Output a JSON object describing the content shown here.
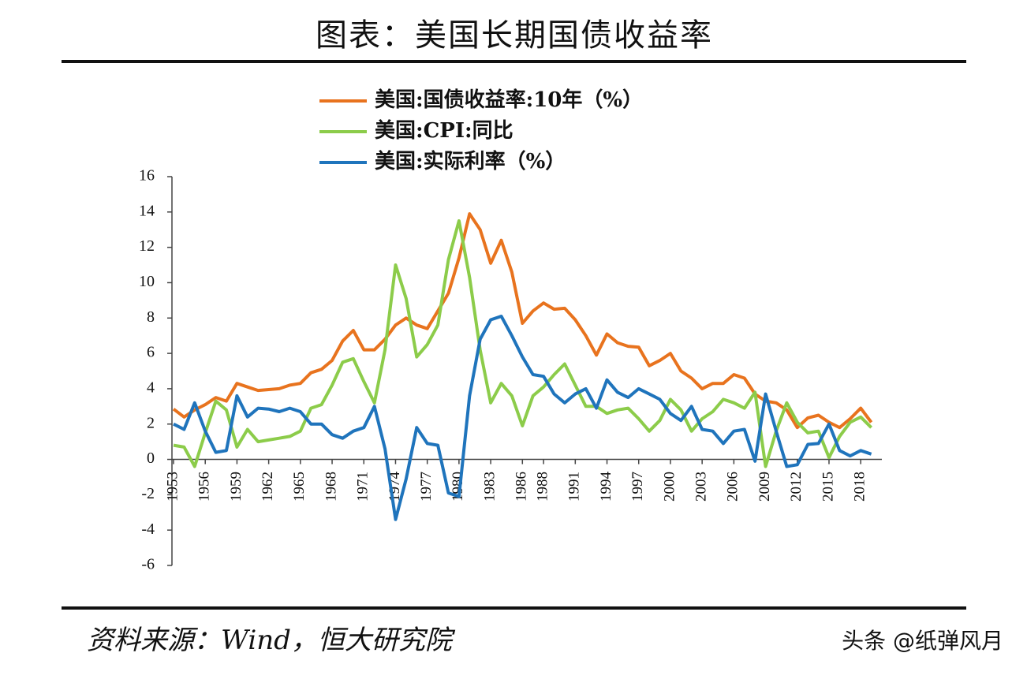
{
  "chart_data": {
    "type": "line",
    "title": "图表：美国长期国债收益率",
    "source": "资料来源：Wind，恒大研究院",
    "watermark": "头条 @纸弹风月",
    "x": [
      1953,
      1954,
      1955,
      1956,
      1957,
      1958,
      1959,
      1960,
      1961,
      1962,
      1963,
      1964,
      1965,
      1966,
      1967,
      1968,
      1969,
      1970,
      1971,
      1972,
      1973,
      1974,
      1975,
      1976,
      1977,
      1978,
      1979,
      1980,
      1981,
      1982,
      1983,
      1984,
      1985,
      1986,
      1987,
      1988,
      1989,
      1990,
      1991,
      1992,
      1993,
      1994,
      1995,
      1996,
      1997,
      1998,
      1999,
      2000,
      2001,
      2002,
      2003,
      2004,
      2005,
      2006,
      2007,
      2008,
      2009,
      2010,
      2011,
      2012,
      2013,
      2014,
      2015,
      2016,
      2017,
      2018,
      2019
    ],
    "series": [
      {
        "name": "美国:国债收益率:10年（%）",
        "color": "#e8731e",
        "values": [
          2.85,
          2.4,
          2.8,
          3.1,
          3.5,
          3.3,
          4.3,
          4.1,
          3.9,
          3.95,
          4.0,
          4.2,
          4.3,
          4.9,
          5.1,
          5.6,
          6.7,
          7.3,
          6.2,
          6.2,
          6.8,
          7.6,
          8.0,
          7.6,
          7.4,
          8.4,
          9.4,
          11.4,
          13.9,
          13.0,
          11.1,
          12.4,
          10.6,
          7.7,
          8.4,
          8.85,
          8.5,
          8.55,
          7.9,
          7.0,
          5.9,
          7.1,
          6.6,
          6.4,
          6.35,
          5.3,
          5.6,
          6.0,
          5.0,
          4.6,
          4.0,
          4.3,
          4.3,
          4.8,
          4.6,
          3.7,
          3.3,
          3.2,
          2.8,
          1.8,
          2.35,
          2.5,
          2.1,
          1.8,
          2.3,
          2.9,
          2.1
        ]
      },
      {
        "name": "美国:CPI:同比",
        "color": "#8ccc4a",
        "values": [
          0.8,
          0.7,
          -0.4,
          1.5,
          3.3,
          2.8,
          0.7,
          1.7,
          1.0,
          1.1,
          1.2,
          1.3,
          1.6,
          2.9,
          3.1,
          4.2,
          5.5,
          5.7,
          4.4,
          3.2,
          6.2,
          11.0,
          9.1,
          5.8,
          6.5,
          7.6,
          11.3,
          13.5,
          10.3,
          6.2,
          3.2,
          4.3,
          3.6,
          1.9,
          3.6,
          4.1,
          4.8,
          5.4,
          4.2,
          3.0,
          3.0,
          2.6,
          2.8,
          2.9,
          2.3,
          1.6,
          2.2,
          3.4,
          2.8,
          1.6,
          2.3,
          2.7,
          3.4,
          3.2,
          2.9,
          3.8,
          -0.4,
          1.6,
          3.2,
          2.1,
          1.5,
          1.6,
          0.1,
          1.3,
          2.1,
          2.4,
          1.8
        ]
      },
      {
        "name": "美国:实际利率（%）",
        "color": "#1f74bc",
        "values": [
          2.0,
          1.7,
          3.2,
          1.6,
          0.4,
          0.5,
          3.6,
          2.4,
          2.9,
          2.85,
          2.7,
          2.9,
          2.7,
          2.0,
          2.0,
          1.4,
          1.2,
          1.6,
          1.8,
          3.0,
          0.6,
          -3.4,
          -1.1,
          1.8,
          0.9,
          0.8,
          -1.9,
          -2.1,
          3.6,
          6.8,
          7.9,
          8.1,
          7.0,
          5.8,
          4.8,
          4.7,
          3.7,
          3.2,
          3.7,
          4.0,
          2.9,
          4.5,
          3.8,
          3.5,
          4.0,
          3.7,
          3.4,
          2.6,
          2.2,
          3.0,
          1.7,
          1.6,
          0.9,
          1.6,
          1.7,
          -0.1,
          3.7,
          1.6,
          -0.4,
          -0.3,
          0.85,
          0.9,
          2.0,
          0.5,
          0.2,
          0.5,
          0.3
        ]
      }
    ],
    "xlim": [
      1953,
      2020
    ],
    "xticks": [
      1953,
      1956,
      1959,
      1962,
      1965,
      1968,
      1971,
      1974,
      1977,
      1980,
      1983,
      1986,
      1988,
      1991,
      1994,
      1997,
      2000,
      2003,
      2006,
      2009,
      2012,
      2015,
      2018
    ],
    "ylim": [
      -6,
      16
    ],
    "yticks": [
      -6,
      -4,
      -2,
      0,
      2,
      4,
      6,
      8,
      10,
      12,
      14,
      16
    ]
  }
}
